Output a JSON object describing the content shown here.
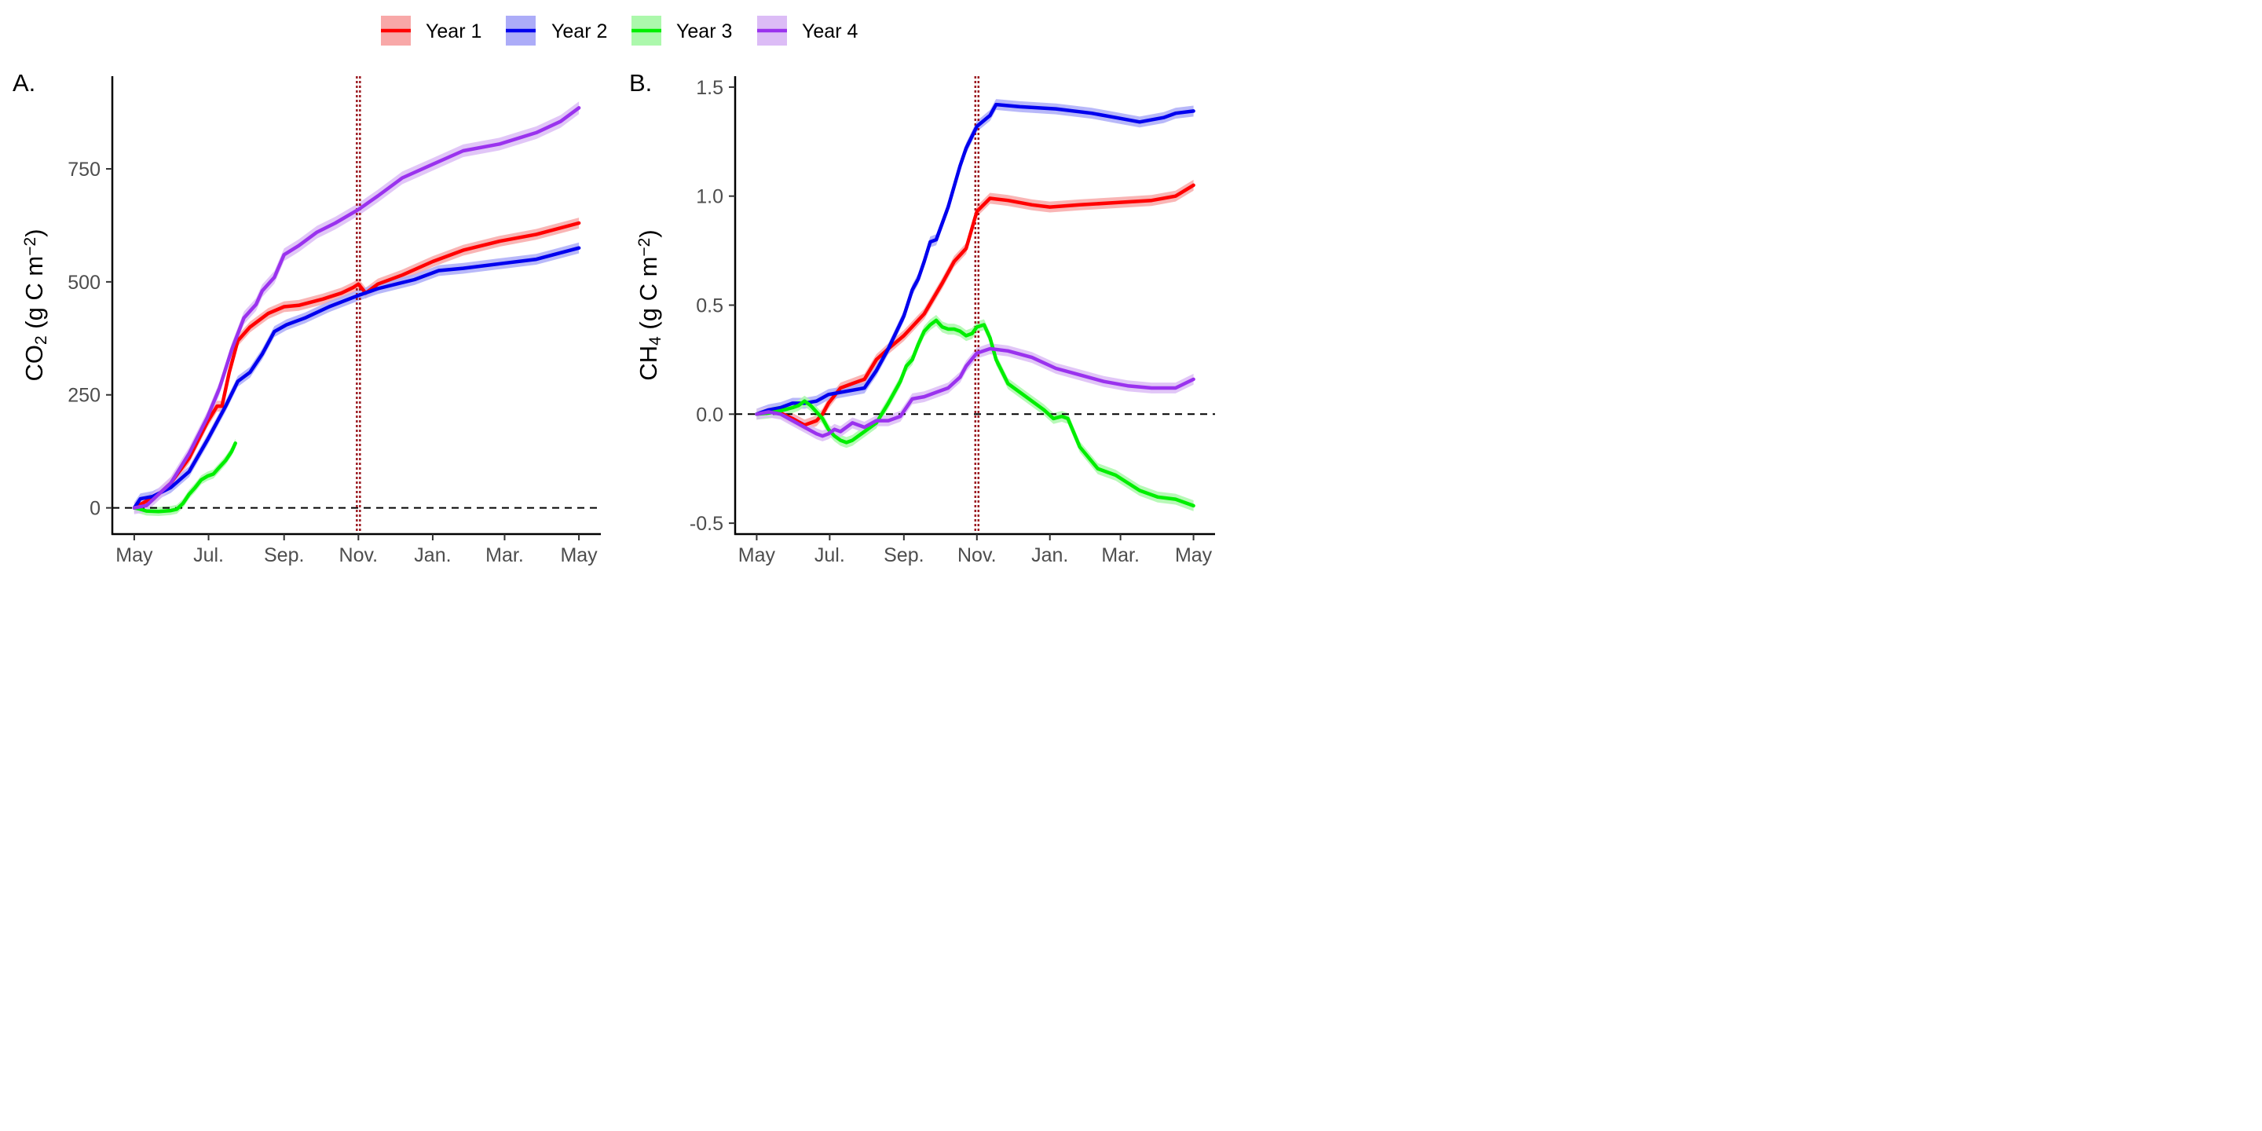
{
  "legend": {
    "entries": [
      {
        "label": "Year 1",
        "color": "#ff0000",
        "band_color": "#f8a8a8"
      },
      {
        "label": "Year 2",
        "color": "#0000ee",
        "band_color": "#acacf8"
      },
      {
        "label": "Year 3",
        "color": "#00ee00",
        "band_color": "#acf8ac"
      },
      {
        "label": "Year 4",
        "color": "#9a32ee",
        "band_color": "#dcbcf6"
      }
    ],
    "position": "top"
  },
  "chart_data": [
    {
      "type": "line",
      "panel_label": "A.",
      "ylabel": {
        "base": "CO",
        "sub": "2",
        "unit_prefix": " (g C m",
        "sup": "−2",
        "unit_suffix": ")"
      },
      "x_tick_labels": [
        "May",
        "Jul.",
        "Sep.",
        "Nov.",
        "Jan.",
        "Mar.",
        "May"
      ],
      "x_ticks": [
        0,
        61,
        123,
        184,
        245,
        304,
        365
      ],
      "xlim": [
        -18,
        383
      ],
      "y_ticks": [
        0,
        250,
        500,
        750
      ],
      "y_tick_labels": [
        "0",
        "250",
        "500",
        "750"
      ],
      "ylim": [
        -58,
        955
      ],
      "reference_lines": {
        "horizontal_dashed_y": 0,
        "vertical_dotted_x": 184
      },
      "x_unit": "days since May 1",
      "series": [
        {
          "name": "Year 1",
          "band": 12,
          "x": [
            0,
            10,
            20,
            30,
            45,
            60,
            68,
            72,
            78,
            85,
            95,
            110,
            123,
            135,
            155,
            170,
            180,
            184,
            190,
            200,
            220,
            245,
            270,
            300,
            330,
            365
          ],
          "y": [
            0,
            15,
            30,
            55,
            110,
            190,
            225,
            225,
            300,
            370,
            400,
            430,
            445,
            448,
            462,
            475,
            488,
            495,
            475,
            495,
            515,
            545,
            570,
            590,
            605,
            630
          ]
        },
        {
          "name": "Year 2",
          "band": 12,
          "x": [
            0,
            5,
            15,
            30,
            45,
            60,
            75,
            85,
            95,
            105,
            115,
            125,
            140,
            160,
            184,
            200,
            230,
            250,
            270,
            300,
            330,
            365
          ],
          "y": [
            0,
            20,
            25,
            45,
            80,
            150,
            225,
            280,
            300,
            340,
            390,
            405,
            420,
            445,
            470,
            485,
            505,
            525,
            530,
            540,
            550,
            575
          ]
        },
        {
          "name": "Year 3",
          "band": 10,
          "x": [
            0,
            5,
            10,
            20,
            30,
            35,
            40,
            45,
            50,
            55,
            60,
            65,
            70,
            75,
            80,
            83
          ],
          "y": [
            0,
            -3,
            -7,
            -8,
            -6,
            -3,
            10,
            30,
            45,
            62,
            70,
            75,
            90,
            105,
            125,
            143
          ]
        },
        {
          "name": "Year 4",
          "band": 14,
          "x": [
            0,
            10,
            20,
            30,
            45,
            60,
            70,
            80,
            90,
            100,
            105,
            115,
            123,
            135,
            150,
            165,
            184,
            200,
            220,
            245,
            270,
            300,
            330,
            350,
            365
          ],
          "y": [
            0,
            5,
            30,
            55,
            120,
            200,
            265,
            350,
            420,
            450,
            480,
            510,
            560,
            580,
            610,
            630,
            660,
            690,
            730,
            760,
            790,
            805,
            830,
            855,
            885
          ]
        }
      ]
    },
    {
      "type": "line",
      "panel_label": "B.",
      "ylabel": {
        "base": "CH",
        "sub": "4",
        "unit_prefix": " (g C m",
        "sup": "−2",
        "unit_suffix": ")"
      },
      "x_tick_labels": [
        "May",
        "Jul.",
        "Sep.",
        "Nov.",
        "Jan.",
        "Mar.",
        "May"
      ],
      "x_ticks": [
        0,
        61,
        123,
        184,
        245,
        304,
        365
      ],
      "xlim": [
        -18,
        383
      ],
      "y_ticks": [
        -0.5,
        0.0,
        0.5,
        1.0,
        1.5
      ],
      "y_tick_labels": [
        "-0.5",
        "0.0",
        "0.5",
        "1.0",
        "1.5"
      ],
      "ylim": [
        -0.55,
        1.55
      ],
      "reference_lines": {
        "horizontal_dashed_y": 0,
        "vertical_dotted_x": 184
      },
      "x_unit": "days since May 1",
      "series": [
        {
          "name": "Year 1",
          "band": 0.025,
          "x": [
            0,
            10,
            20,
            30,
            40,
            50,
            55,
            60,
            70,
            80,
            90,
            100,
            110,
            123,
            140,
            155,
            165,
            175,
            184,
            195,
            210,
            230,
            245,
            270,
            300,
            330,
            350,
            365
          ],
          "y": [
            0,
            0.01,
            0.005,
            -0.02,
            -0.05,
            -0.03,
            0,
            0.05,
            0.12,
            0.14,
            0.16,
            0.25,
            0.3,
            0.36,
            0.46,
            0.6,
            0.7,
            0.76,
            0.93,
            0.99,
            0.98,
            0.96,
            0.95,
            0.96,
            0.97,
            0.98,
            1.0,
            1.05
          ]
        },
        {
          "name": "Year 2",
          "band": 0.025,
          "x": [
            0,
            10,
            20,
            30,
            40,
            50,
            60,
            70,
            80,
            90,
            100,
            110,
            123,
            130,
            135,
            140,
            145,
            150,
            160,
            170,
            175,
            184,
            195,
            200,
            220,
            250,
            280,
            300,
            320,
            340,
            350,
            365
          ],
          "y": [
            0,
            0.02,
            0.03,
            0.05,
            0.05,
            0.06,
            0.09,
            0.1,
            0.11,
            0.12,
            0.2,
            0.3,
            0.45,
            0.57,
            0.62,
            0.7,
            0.79,
            0.8,
            0.95,
            1.14,
            1.22,
            1.32,
            1.37,
            1.42,
            1.41,
            1.4,
            1.38,
            1.36,
            1.34,
            1.36,
            1.38,
            1.39
          ]
        },
        {
          "name": "Year 3",
          "band": 0.025,
          "x": [
            0,
            10,
            20,
            30,
            35,
            40,
            45,
            50,
            55,
            60,
            65,
            70,
            75,
            80,
            90,
            100,
            110,
            120,
            125,
            130,
            135,
            140,
            145,
            150,
            155,
            160,
            165,
            170,
            175,
            180,
            184,
            190,
            195,
            200,
            210,
            220,
            230,
            240,
            248,
            255,
            260,
            270,
            285,
            300,
            320,
            335,
            350,
            365
          ],
          "y": [
            0,
            0.005,
            0.015,
            0.03,
            0.04,
            0.06,
            0.04,
            0.01,
            -0.02,
            -0.07,
            -0.1,
            -0.12,
            -0.13,
            -0.12,
            -0.08,
            -0.04,
            0.05,
            0.15,
            0.22,
            0.25,
            0.32,
            0.38,
            0.41,
            0.43,
            0.4,
            0.39,
            0.39,
            0.38,
            0.36,
            0.37,
            0.4,
            0.41,
            0.35,
            0.25,
            0.14,
            0.1,
            0.06,
            0.02,
            -0.02,
            -0.01,
            -0.02,
            -0.15,
            -0.25,
            -0.28,
            -0.35,
            -0.38,
            -0.39,
            -0.42
          ]
        },
        {
          "name": "Year 4",
          "band": 0.025,
          "x": [
            0,
            10,
            20,
            30,
            40,
            50,
            55,
            60,
            65,
            70,
            80,
            90,
            100,
            110,
            115,
            120,
            125,
            130,
            140,
            150,
            160,
            170,
            175,
            184,
            195,
            210,
            230,
            250,
            270,
            290,
            310,
            330,
            340,
            350,
            365
          ],
          "y": [
            0,
            0.01,
            0.0,
            -0.03,
            -0.06,
            -0.09,
            -0.1,
            -0.09,
            -0.07,
            -0.08,
            -0.04,
            -0.06,
            -0.03,
            -0.03,
            -0.02,
            -0.01,
            0.03,
            0.07,
            0.08,
            0.1,
            0.12,
            0.17,
            0.22,
            0.28,
            0.3,
            0.29,
            0.26,
            0.21,
            0.18,
            0.15,
            0.13,
            0.12,
            0.12,
            0.12,
            0.16
          ]
        }
      ]
    }
  ]
}
